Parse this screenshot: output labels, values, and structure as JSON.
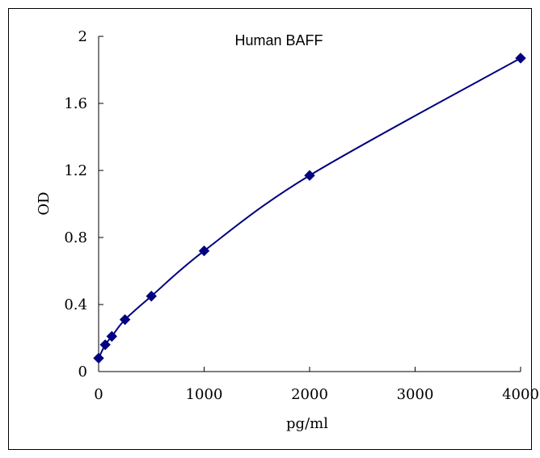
{
  "chart_data": {
    "type": "scatter",
    "title": "Human BAFF",
    "xlabel": "pg/ml",
    "ylabel": "OD",
    "xlim": [
      0,
      4000
    ],
    "ylim": [
      0,
      2
    ],
    "x_ticks": [
      "0",
      "1000",
      "2000",
      "3000",
      "4000"
    ],
    "y_ticks": [
      "0",
      "0.4",
      "0.8",
      "1.2",
      "1.6",
      "2"
    ],
    "grid": false,
    "legend": "none",
    "series": [
      {
        "x": [
          0,
          62.5,
          125,
          250,
          500,
          1000,
          2000,
          4000
        ],
        "y": [
          0.08,
          0.16,
          0.21,
          0.31,
          0.45,
          0.72,
          1.17,
          1.87
        ]
      }
    ],
    "colors": {
      "series": "#000080",
      "axis": "#000000"
    },
    "marker": "diamond",
    "fit_line": "smooth"
  }
}
